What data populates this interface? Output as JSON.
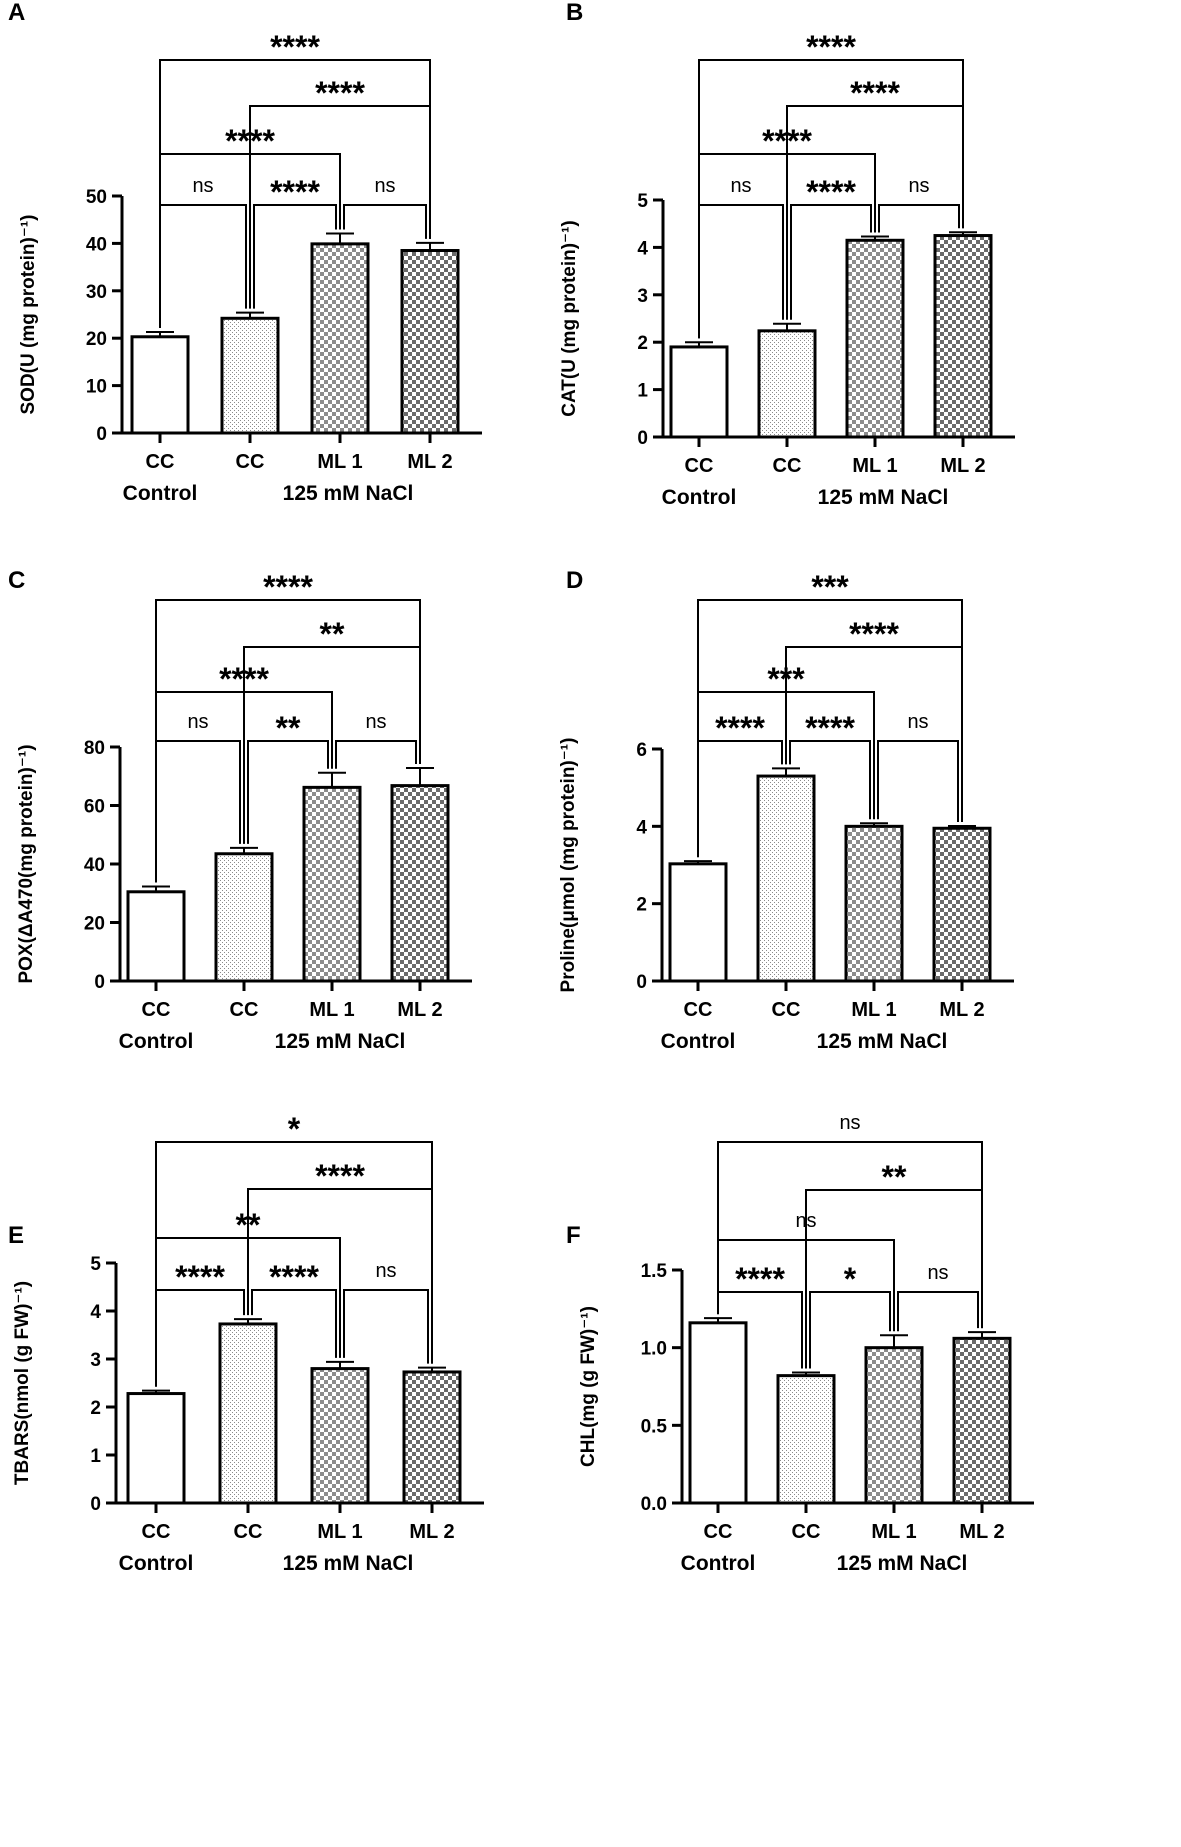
{
  "figure": {
    "background": "#ffffff",
    "line_color": "#000000"
  },
  "chart_data": [
    {
      "panel": "A",
      "type": "bar",
      "categories": [
        "CC",
        "CC",
        "ML 1",
        "ML 2"
      ],
      "groups": [
        "Control",
        "125 mM NaCl"
      ],
      "values": [
        20.3,
        24.2,
        39.9,
        38.5
      ],
      "errors": [
        1.0,
        1.2,
        2.2,
        1.6
      ],
      "patterns": [
        "white",
        "fine",
        "check",
        "check-dark"
      ],
      "ylabel": "SOD(U (mg protein)⁻¹)",
      "ylim": [
        0,
        50
      ],
      "yticks": [
        "0",
        "10",
        "20",
        "30",
        "40",
        "50"
      ],
      "comparisons": [
        {
          "from": 0,
          "to": 3,
          "label": "****"
        },
        {
          "from": 1,
          "to": 3,
          "label": "****"
        },
        {
          "from": 0,
          "to": 2,
          "label": "****"
        },
        {
          "from": 0,
          "to": 1,
          "label": "ns"
        },
        {
          "from": 1,
          "to": 2,
          "label": "****"
        },
        {
          "from": 2,
          "to": 3,
          "label": "ns"
        }
      ]
    },
    {
      "panel": "B",
      "type": "bar",
      "categories": [
        "CC",
        "CC",
        "ML 1",
        "ML 2"
      ],
      "groups": [
        "Control",
        "125 mM NaCl"
      ],
      "values": [
        1.9,
        2.24,
        4.15,
        4.25
      ],
      "errors": [
        0.1,
        0.15,
        0.08,
        0.07
      ],
      "patterns": [
        "white",
        "fine",
        "check",
        "check-dark"
      ],
      "ylabel": "CAT(U (mg protein)⁻¹)",
      "ylim": [
        0,
        5
      ],
      "yticks": [
        "0",
        "1",
        "2",
        "3",
        "4",
        "5"
      ],
      "comparisons": [
        {
          "from": 0,
          "to": 3,
          "label": "****"
        },
        {
          "from": 1,
          "to": 3,
          "label": "****"
        },
        {
          "from": 0,
          "to": 2,
          "label": "****"
        },
        {
          "from": 0,
          "to": 1,
          "label": "ns"
        },
        {
          "from": 1,
          "to": 2,
          "label": "****"
        },
        {
          "from": 2,
          "to": 3,
          "label": "ns"
        }
      ]
    },
    {
      "panel": "C",
      "type": "bar",
      "categories": [
        "CC",
        "CC",
        "ML 1",
        "ML 2"
      ],
      "groups": [
        "Control",
        "125 mM NaCl"
      ],
      "values": [
        30.5,
        43.5,
        66.2,
        66.8
      ],
      "errors": [
        1.8,
        2.0,
        5.0,
        6.0
      ],
      "patterns": [
        "white",
        "fine",
        "check",
        "check-dark"
      ],
      "ylabel": "POX(ΔA470(mg protein)⁻¹)",
      "ylim": [
        0,
        80
      ],
      "yticks": [
        "0",
        "20",
        "40",
        "60",
        "80"
      ],
      "comparisons": [
        {
          "from": 0,
          "to": 3,
          "label": "****"
        },
        {
          "from": 1,
          "to": 3,
          "label": "**"
        },
        {
          "from": 0,
          "to": 2,
          "label": "****"
        },
        {
          "from": 0,
          "to": 1,
          "label": "ns"
        },
        {
          "from": 1,
          "to": 2,
          "label": "**"
        },
        {
          "from": 2,
          "to": 3,
          "label": "ns"
        }
      ]
    },
    {
      "panel": "D",
      "type": "bar",
      "categories": [
        "CC",
        "CC",
        "ML 1",
        "ML 2"
      ],
      "groups": [
        "Control",
        "125 mM NaCl"
      ],
      "values": [
        3.03,
        5.3,
        4.0,
        3.95
      ],
      "errors": [
        0.07,
        0.2,
        0.08,
        0.06
      ],
      "patterns": [
        "white",
        "fine",
        "check",
        "check-dark"
      ],
      "ylabel": "Proline(μmol (mg protein)⁻¹)",
      "ylim": [
        0,
        6
      ],
      "yticks": [
        "0",
        "2",
        "4",
        "6"
      ],
      "comparisons": [
        {
          "from": 0,
          "to": 3,
          "label": "***"
        },
        {
          "from": 1,
          "to": 3,
          "label": "****"
        },
        {
          "from": 0,
          "to": 2,
          "label": "***"
        },
        {
          "from": 0,
          "to": 1,
          "label": "****"
        },
        {
          "from": 1,
          "to": 2,
          "label": "****"
        },
        {
          "from": 2,
          "to": 3,
          "label": "ns"
        }
      ]
    },
    {
      "panel": "E",
      "type": "bar",
      "categories": [
        "CC",
        "CC",
        "ML 1",
        "ML 2"
      ],
      "groups": [
        "Control",
        "125 mM NaCl"
      ],
      "values": [
        2.28,
        3.73,
        2.8,
        2.73
      ],
      "errors": [
        0.06,
        0.1,
        0.14,
        0.09
      ],
      "patterns": [
        "white",
        "fine",
        "check",
        "check-dark"
      ],
      "ylabel": "TBARS(nmol (g FW)⁻¹)",
      "ylim": [
        0,
        5
      ],
      "yticks": [
        "0",
        "1",
        "2",
        "3",
        "4",
        "5"
      ],
      "comparisons": [
        {
          "from": 0,
          "to": 3,
          "label": "*"
        },
        {
          "from": 1,
          "to": 3,
          "label": "****"
        },
        {
          "from": 0,
          "to": 2,
          "label": "**"
        },
        {
          "from": 0,
          "to": 1,
          "label": "****"
        },
        {
          "from": 1,
          "to": 2,
          "label": "****"
        },
        {
          "from": 2,
          "to": 3,
          "label": "ns"
        }
      ]
    },
    {
      "panel": "F",
      "type": "bar",
      "categories": [
        "CC",
        "CC",
        "ML 1",
        "ML 2"
      ],
      "groups": [
        "Control",
        "125 mM NaCl"
      ],
      "values": [
        1.16,
        0.82,
        1.0,
        1.06
      ],
      "errors": [
        0.03,
        0.02,
        0.08,
        0.04
      ],
      "patterns": [
        "white",
        "fine",
        "check",
        "check-dark"
      ],
      "ylabel": "CHL(mg (g FW)⁻¹)",
      "ylim": [
        0,
        1.5
      ],
      "yticks": [
        "0.0",
        "0.5",
        "1.0",
        "1.5"
      ],
      "comparisons": [
        {
          "from": 0,
          "to": 3,
          "label": "ns"
        },
        {
          "from": 1,
          "to": 3,
          "label": "**"
        },
        {
          "from": 0,
          "to": 2,
          "label": "ns"
        },
        {
          "from": 0,
          "to": 1,
          "label": "****"
        },
        {
          "from": 1,
          "to": 2,
          "label": "*"
        },
        {
          "from": 2,
          "to": 3,
          "label": "ns"
        }
      ]
    }
  ]
}
